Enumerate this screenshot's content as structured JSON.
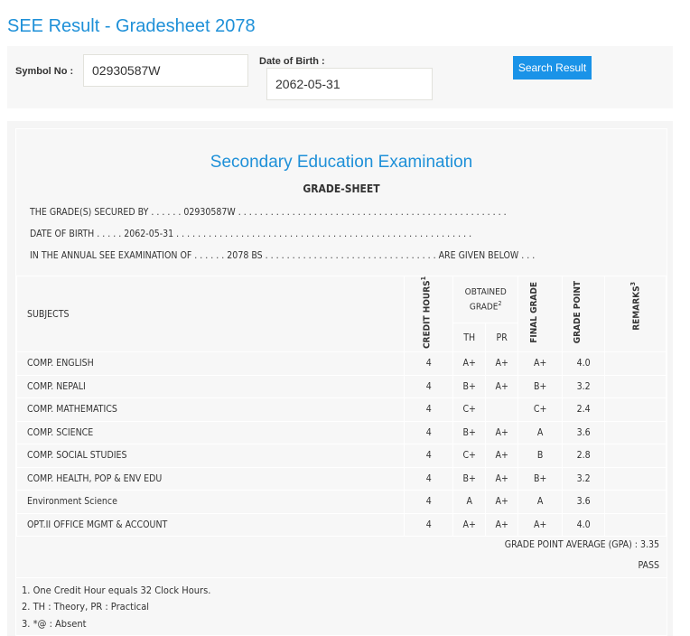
{
  "page_title": "SEE Result - Gradesheet 2078",
  "search": {
    "symbol_label": "Symbol No :",
    "symbol_value": "02930587W",
    "dob_label": "Date of Birth :",
    "dob_value": "2062-05-31",
    "button_label": "Search Result",
    "button_color": "#1a93e8"
  },
  "sheet": {
    "exam_title": "Secondary Education Examination",
    "subtitle": "GRADE-SHEET",
    "line1": "THE GRADE(S) SECURED BY . . . . . . 02930587W . . . . . . . . . . . . . . . . . . . . . . . . . . . . . . . . . . . . . . . . . . . . . . . . . .",
    "line2": "DATE OF BIRTH . . . . . 2062-05-31 . . . . . . . . . . . . . . . . . . . . . . . . . . . . . . . . . . . . . . . . . . . . . . . . . . . . . . .",
    "line3": "IN THE ANNUAL SEE EXAMINATION OF . . . . . . 2078 BS . . . . . . . . . . . . . . . . . . . . . . . . . . . . . . . . ARE GIVEN BELOW . . .",
    "headers": {
      "subjects": "SUBJECTS",
      "credit_hours": "CREDIT HOURS",
      "credit_sup": "1",
      "obtained_grade": "OBTAINED GRADE",
      "obtained_sup": "2",
      "th": "TH",
      "pr": "PR",
      "final_grade": "FINAL GRADE",
      "grade_point": "GRADE POINT",
      "remarks": "REMARKS",
      "remarks_sup": "3"
    },
    "rows": [
      {
        "subject": "COMP. ENGLISH",
        "credit": "4",
        "th": "A+",
        "pr": "A+",
        "final": "A+",
        "gp": "4.0",
        "remarks": ""
      },
      {
        "subject": "COMP. NEPALI",
        "credit": "4",
        "th": "B+",
        "pr": "A+",
        "final": "B+",
        "gp": "3.2",
        "remarks": ""
      },
      {
        "subject": "COMP. MATHEMATICS",
        "credit": "4",
        "th": "C+",
        "pr": "",
        "final": "C+",
        "gp": "2.4",
        "remarks": ""
      },
      {
        "subject": "COMP. SCIENCE",
        "credit": "4",
        "th": "B+",
        "pr": "A+",
        "final": "A",
        "gp": "3.6",
        "remarks": ""
      },
      {
        "subject": "COMP. SOCIAL STUDIES",
        "credit": "4",
        "th": "C+",
        "pr": "A+",
        "final": "B",
        "gp": "2.8",
        "remarks": ""
      },
      {
        "subject": "COMP. HEALTH, POP & ENV EDU",
        "credit": "4",
        "th": "B+",
        "pr": "A+",
        "final": "B+",
        "gp": "3.2",
        "remarks": ""
      },
      {
        "subject": "Environment Science",
        "credit": "4",
        "th": "A",
        "pr": "A+",
        "final": "A",
        "gp": "3.6",
        "remarks": ""
      },
      {
        "subject": "OPT.II OFFICE MGMT & ACCOUNT",
        "credit": "4",
        "th": "A+",
        "pr": "A+",
        "final": "A+",
        "gp": "4.0",
        "remarks": ""
      }
    ],
    "gpa_text": "GRADE POINT AVERAGE (GPA) : 3.35",
    "result": "PASS",
    "footnotes": [
      "1. One Credit Hour equals 32 Clock Hours.",
      "2. TH : Theory, PR : Practical",
      "3. *@ : Absent"
    ]
  }
}
